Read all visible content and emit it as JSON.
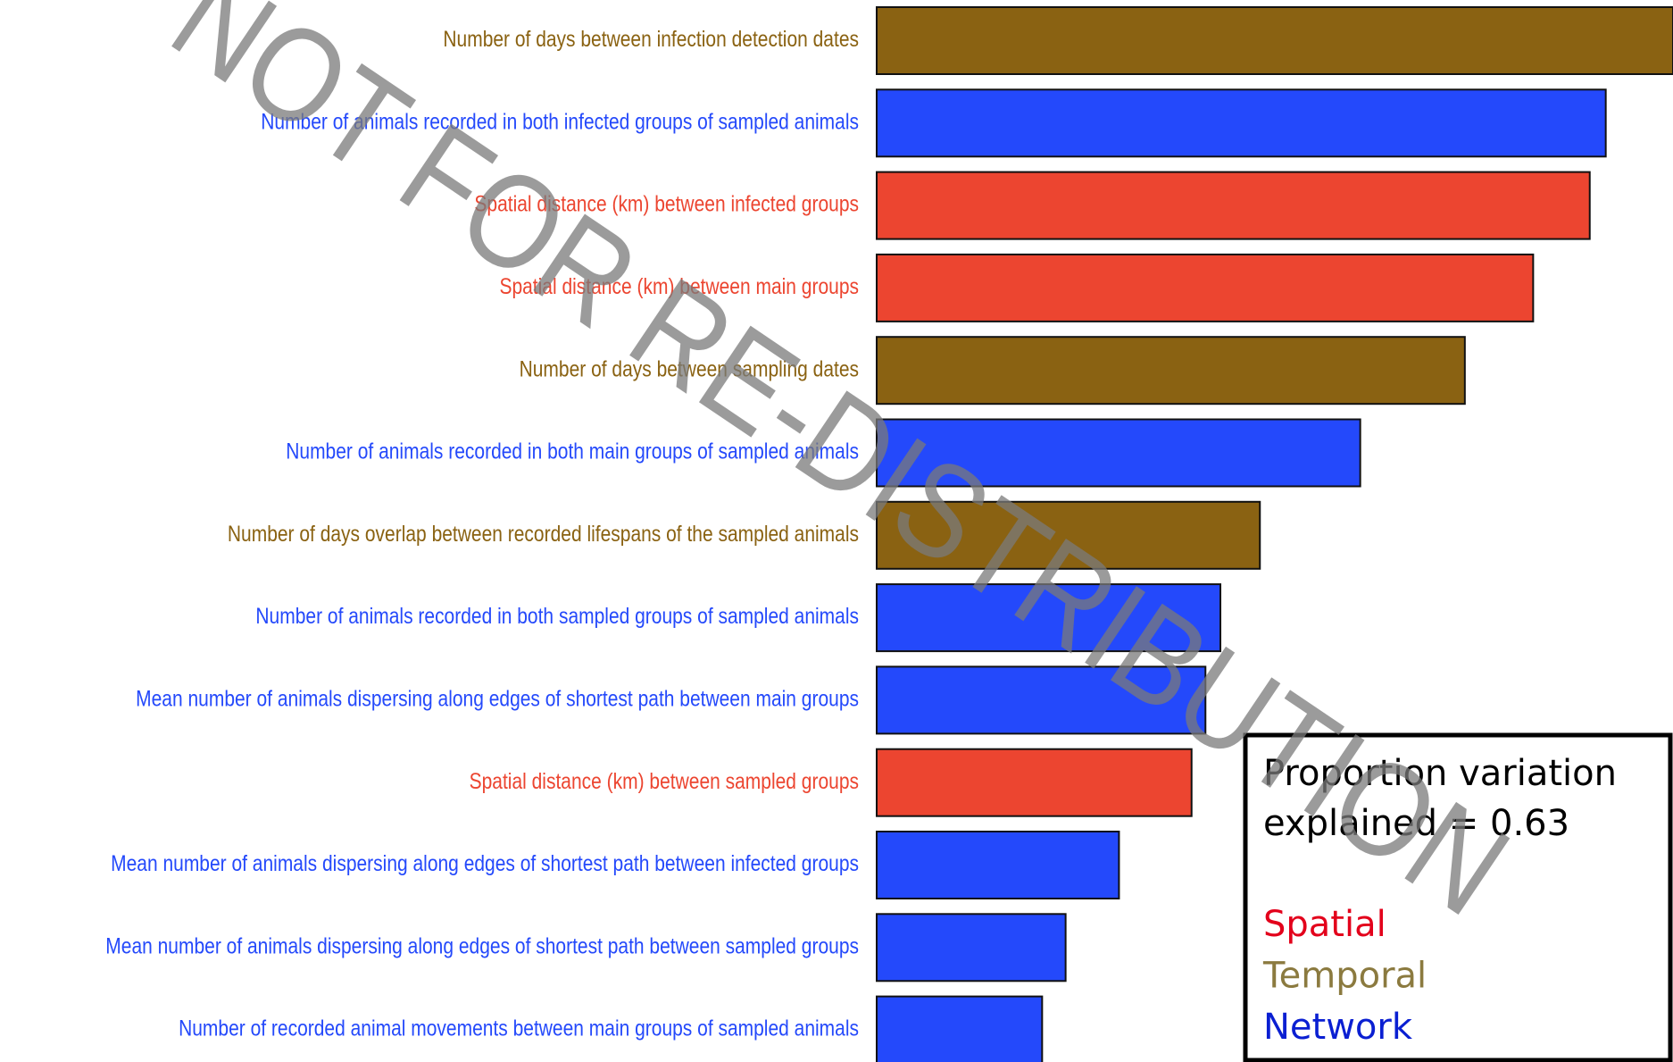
{
  "chart_data": {
    "type": "barh",
    "categories": [
      "Number of days between infection detection dates",
      "Number of animals recorded in both infected groups of sampled animals",
      "Spatial distance (km) between infected groups",
      "Spatial distance (km) between main groups",
      "Number of days between sampling dates",
      "Number of animals recorded in both main groups of sampled animals",
      "Number of days overlap between recorded lifespans of the sampled animals",
      "Number of animals recorded in both sampled groups of sampled animals",
      "Mean number of animals dispersing along edges of shortest path between main groups",
      "Spatial distance (km) between sampled groups",
      "Mean number of animals dispersing along edges of shortest path between infected groups",
      "Mean number of animals dispersing along edges of shortest path between sampled groups",
      "Number of recorded animal movements between main groups of sampled animals"
    ],
    "values": [
      746,
      683,
      668,
      615,
      551,
      453,
      359,
      322,
      308,
      295,
      227,
      177,
      155
    ],
    "bar_colors": [
      "#8a6212",
      "#2449fb",
      "#ec4530",
      "#ec4530",
      "#8a6212",
      "#2449fb",
      "#8a6212",
      "#2449fb",
      "#2449fb",
      "#ec4530",
      "#2449fb",
      "#2449fb",
      "#2449fb"
    ],
    "xlim": [
      0,
      746
    ],
    "annotation": "Proportion variation explained = 0.63",
    "legend": [
      {
        "name": "Spatial",
        "color": "#e3001b"
      },
      {
        "name": "Temporal",
        "color": "#8b7a3f"
      },
      {
        "name": "Network",
        "color": "#0a1fd2"
      }
    ],
    "watermark": "NOT FOR RE-DISTRIBUTION"
  }
}
